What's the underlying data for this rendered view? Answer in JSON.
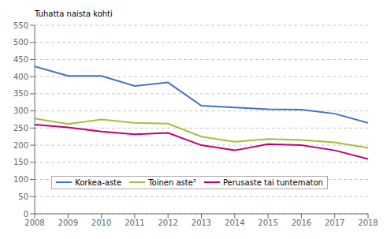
{
  "chart_data": {
    "type": "line",
    "ylabel": "Tuhatta naista kohti",
    "x": [
      2008,
      2009,
      2010,
      2011,
      2012,
      2013,
      2014,
      2015,
      2016,
      2017,
      2018
    ],
    "xlim": [
      2008,
      2018
    ],
    "xticks": [
      2008,
      2009,
      2010,
      2011,
      2012,
      2013,
      2014,
      2015,
      2016,
      2017,
      2018
    ],
    "ylim": [
      0,
      550
    ],
    "yticks": [
      0,
      50,
      100,
      150,
      200,
      250,
      300,
      350,
      400,
      450,
      500,
      550
    ],
    "grid": true,
    "legend": "lower left",
    "series": [
      {
        "name": "Korkea-aste",
        "color": "#4472C4",
        "values": [
          430,
          402,
          402,
          373,
          383,
          315,
          310,
          305,
          304,
          292,
          265
        ]
      },
      {
        "name": "Toinen aste²",
        "color": "#9DC33B",
        "values": [
          278,
          262,
          275,
          265,
          263,
          225,
          210,
          218,
          215,
          208,
          192
        ]
      },
      {
        "name": "Perusaste tai tuntematon",
        "color": "#C00078",
        "values": [
          260,
          252,
          240,
          232,
          236,
          200,
          185,
          203,
          200,
          185,
          160
        ]
      }
    ]
  }
}
